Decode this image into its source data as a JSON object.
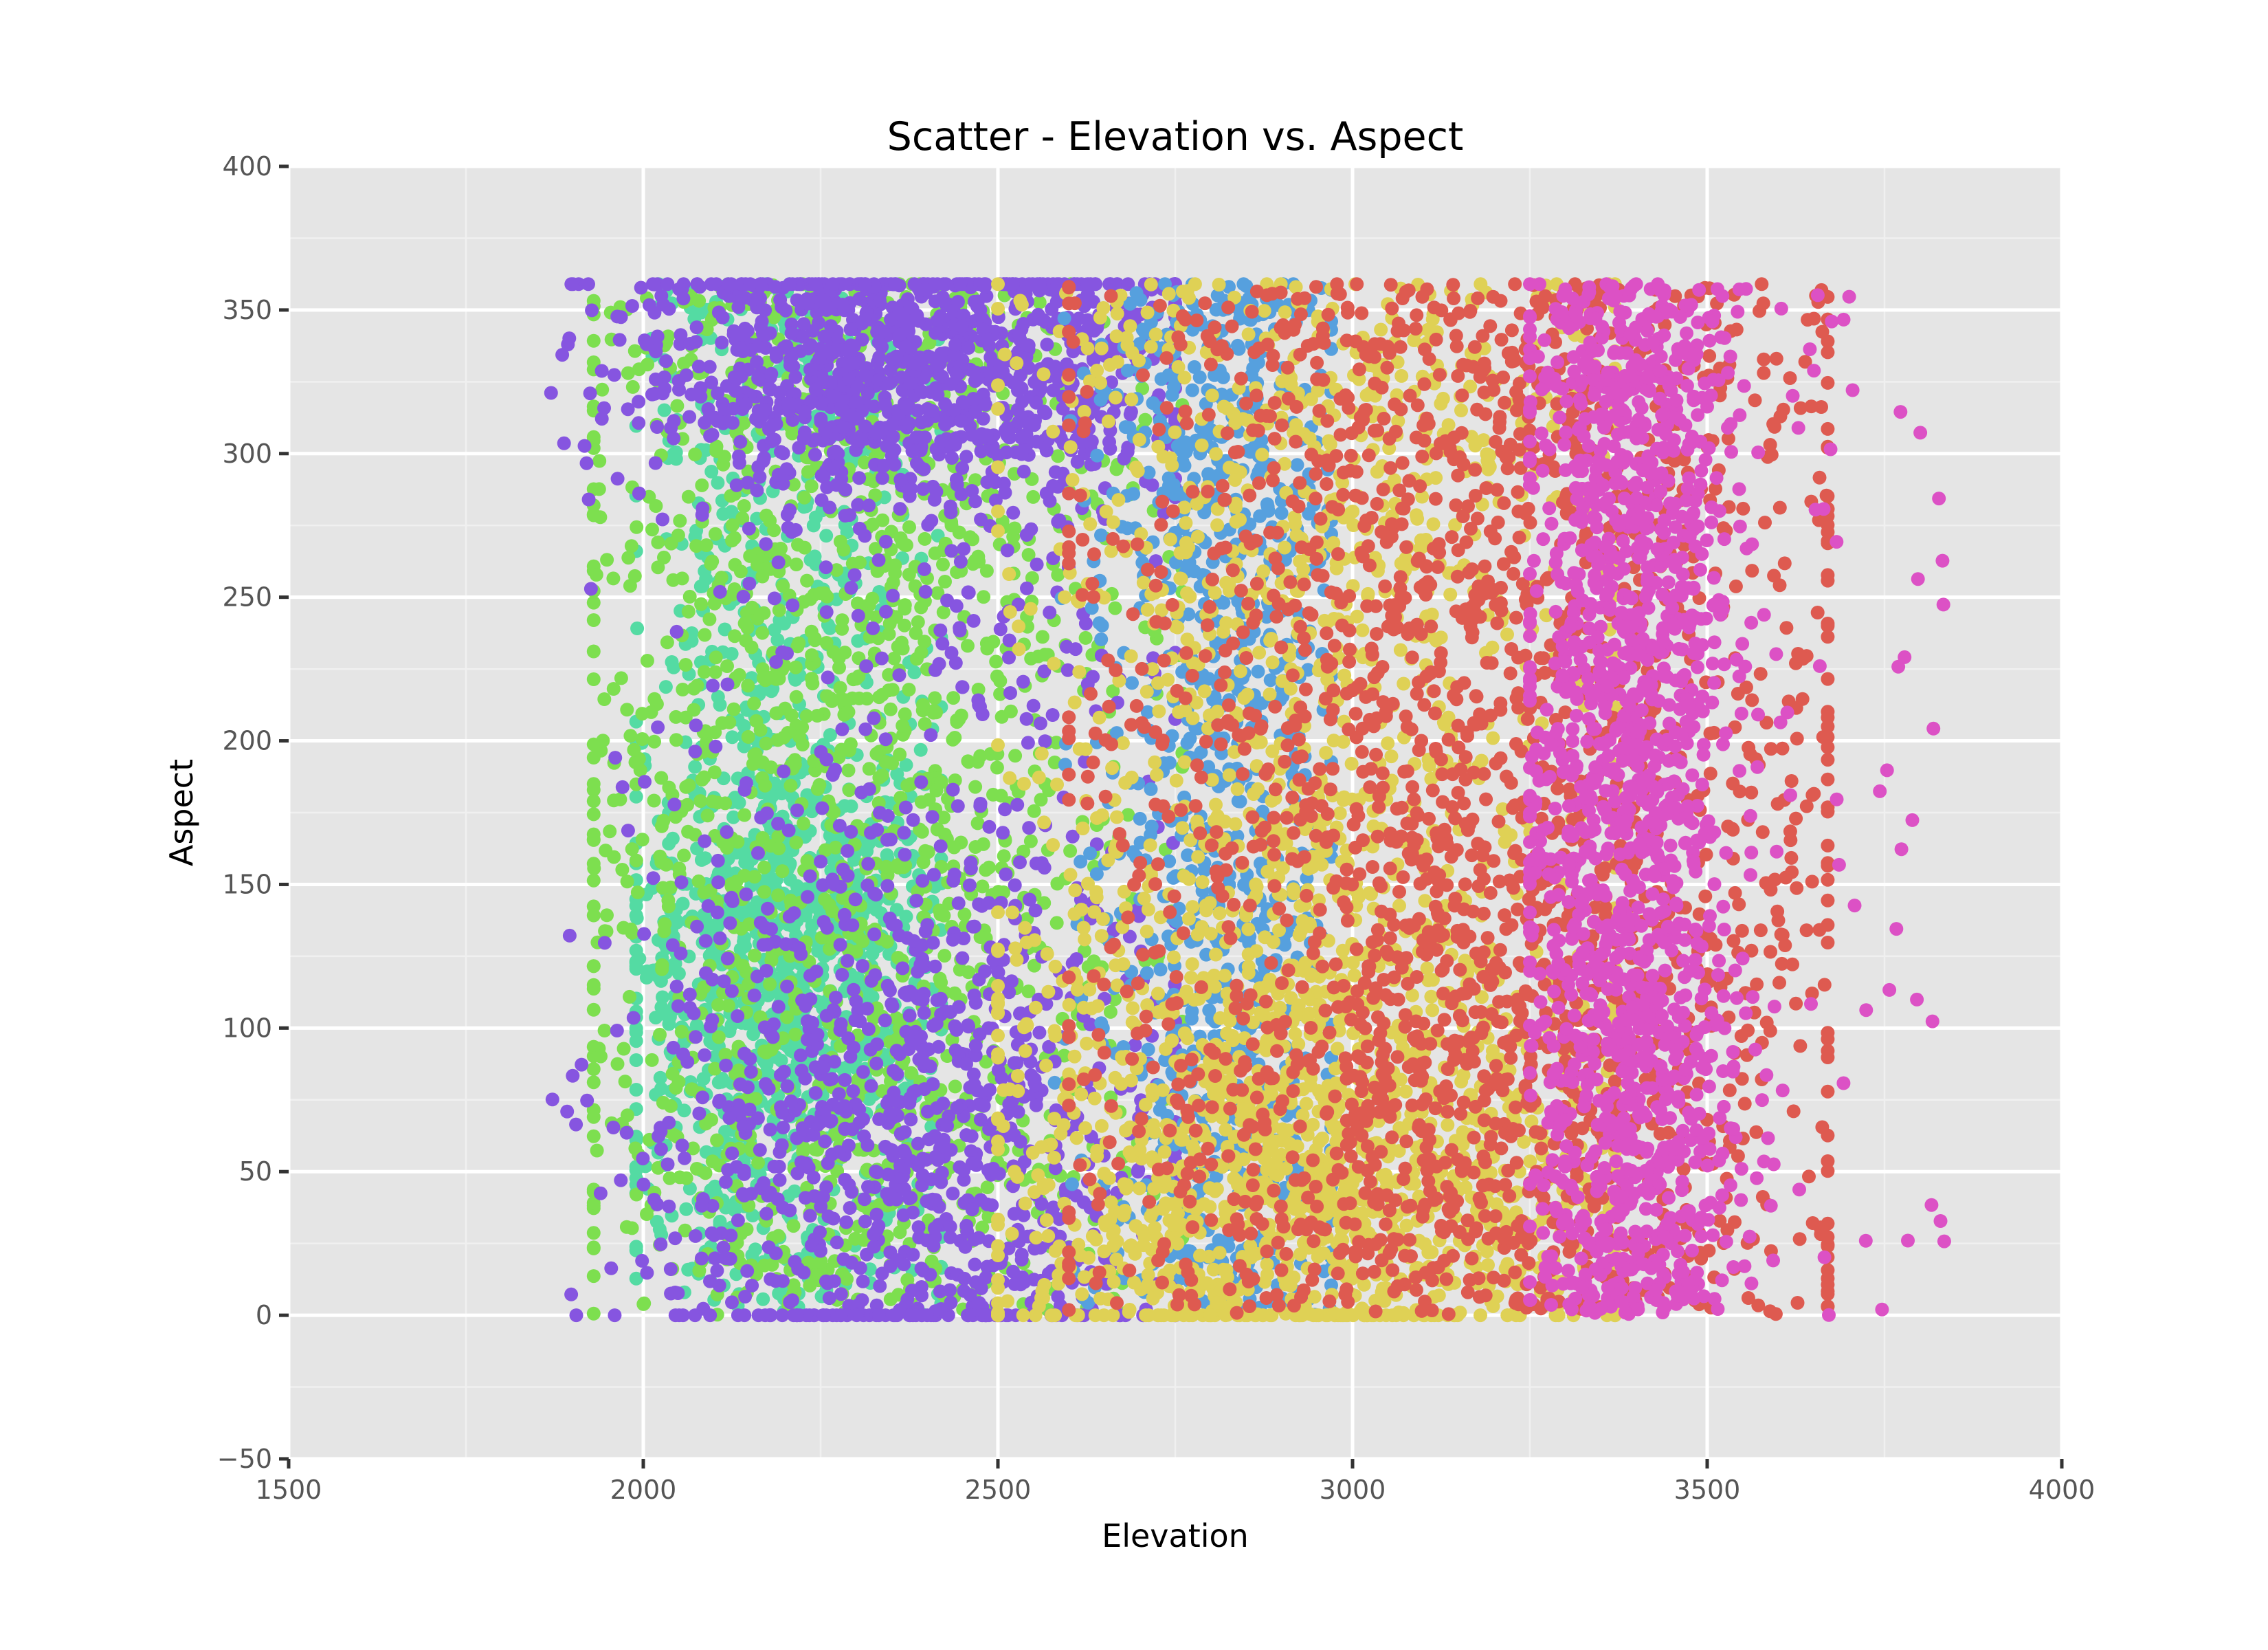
{
  "chart_data": {
    "type": "scatter",
    "title": "Scatter - Elevation vs. Aspect",
    "xlabel": "Elevation",
    "ylabel": "Aspect",
    "xlim": [
      1500,
      4000
    ],
    "ylim": [
      -50,
      400
    ],
    "x_ticks": [
      1500,
      2000,
      2500,
      3000,
      3500,
      4000
    ],
    "y_ticks": [
      -50,
      0,
      50,
      100,
      150,
      200,
      250,
      300,
      350,
      400
    ],
    "x_tick_labels": [
      "1500",
      "2000",
      "2500",
      "3000",
      "3500",
      "4000"
    ],
    "y_tick_labels": [
      "−50",
      "0",
      "50",
      "100",
      "150",
      "200",
      "250",
      "300",
      "350",
      "400"
    ],
    "grid": true,
    "background": "#e5e5e5",
    "legend": "none",
    "aspect_range": [
      0,
      360
    ],
    "series": [
      {
        "color": "#54dba3",
        "x_range": [
          1990,
          2420
        ],
        "x_center": 2200,
        "aspect_distribution": "concentrated near 100-150, spread over 0-360",
        "approx_points": 1400
      },
      {
        "color": "#7ddf4f",
        "x_range": [
          1930,
          2760
        ],
        "x_center": 2300,
        "aspect_distribution": "spread over 0-360",
        "approx_points": 1700
      },
      {
        "color": "#8655e0",
        "x_range": [
          1870,
          2750
        ],
        "x_center": 2380,
        "aspect_distribution": "concentrated near 300-360 and 0-150",
        "approx_points": 2200
      },
      {
        "color": "#56a0de",
        "x_range": [
          2580,
          2970
        ],
        "x_center": 2820,
        "aspect_distribution": "spread over 0-360",
        "approx_points": 1000
      },
      {
        "color": "#dfd155",
        "x_range": [
          2500,
          3370
        ],
        "x_center": 2950,
        "aspect_distribution": "spread over 0-360, dense near 0-100",
        "approx_points": 2300
      },
      {
        "color": "#de5a50",
        "x_range": [
          2600,
          3670
        ],
        "x_center": 3180,
        "aspect_distribution": "spread over 0-360",
        "approx_points": 2300
      },
      {
        "color": "#dc51c5",
        "x_range": [
          3250,
          3850
        ],
        "x_center": 3390,
        "aspect_distribution": "spread over 0-360, sparse outliers above 3500",
        "approx_points": 1700
      }
    ]
  }
}
